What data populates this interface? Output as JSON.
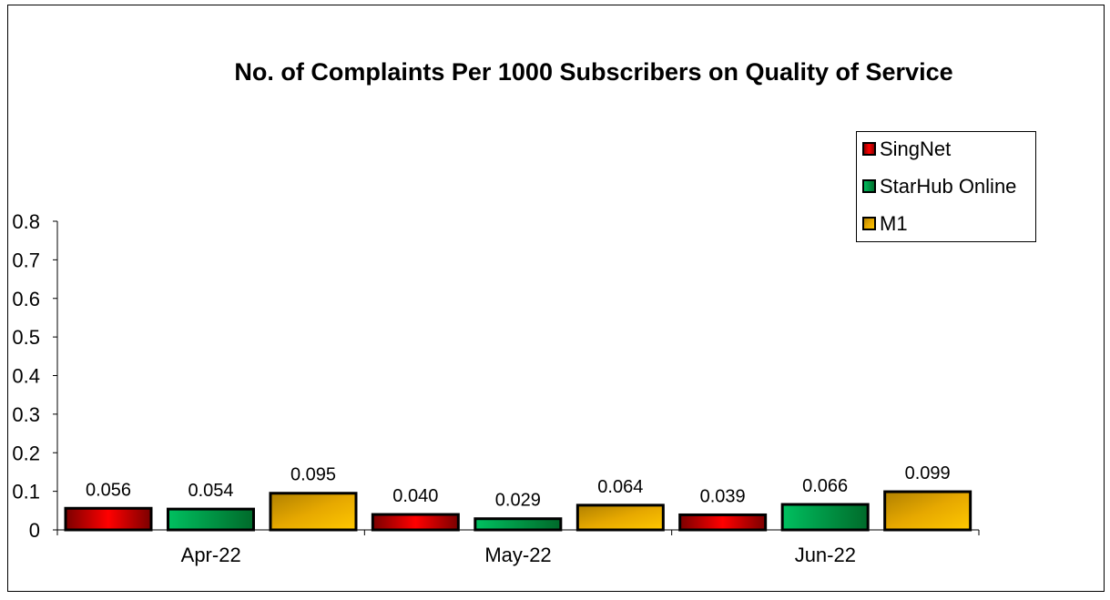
{
  "chart_data": {
    "type": "bar",
    "title": "No. of Complaints Per 1000 Subscribers on Quality of Service",
    "categories": [
      "Apr-22",
      "May-22",
      "Jun-22"
    ],
    "series": [
      {
        "name": "SingNet",
        "values": [
          0.056,
          0.04,
          0.039
        ],
        "labels": [
          "0.056",
          "0.040",
          "0.039"
        ],
        "color": "#ff0000"
      },
      {
        "name": "StarHub Online",
        "values": [
          0.054,
          0.029,
          0.066
        ],
        "labels": [
          "0.054",
          "0.029",
          "0.066"
        ],
        "color": "#00b050"
      },
      {
        "name": "M1",
        "values": [
          0.095,
          0.064,
          0.099
        ],
        "labels": [
          "0.095",
          "0.064",
          "0.099"
        ],
        "color": "#ffc000"
      }
    ],
    "ylim": [
      0,
      0.8
    ],
    "yticks": [
      "0",
      "0.1",
      "0.2",
      "0.3",
      "0.4",
      "0.5",
      "0.6",
      "0.7",
      "0.8"
    ],
    "grid": false,
    "legend": "top-right",
    "xlabel": "",
    "ylabel": ""
  }
}
